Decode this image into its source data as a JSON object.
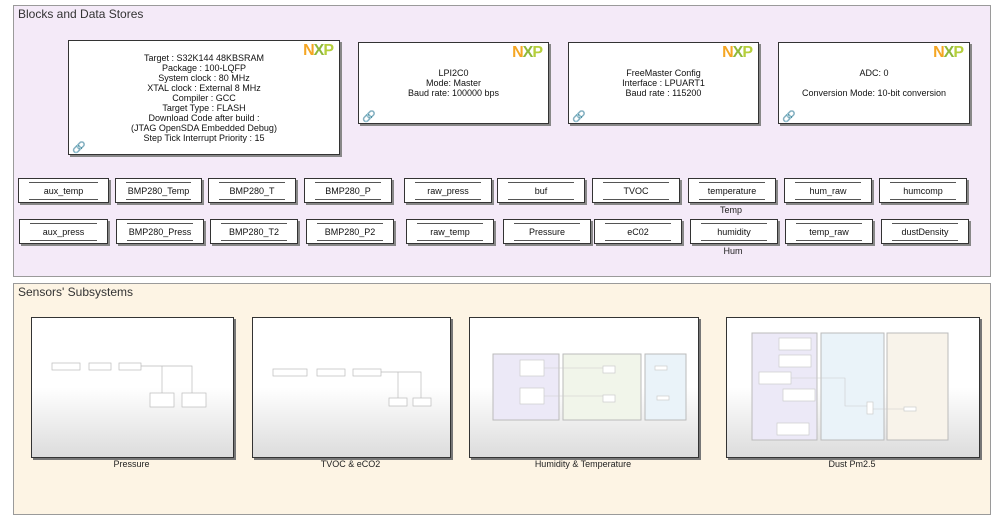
{
  "areas": {
    "blocks_title": "Blocks and Data Stores",
    "sensors_title": "Sensors' Subsystems"
  },
  "colors": {
    "blocks_bg": "#f4eaf8",
    "sensors_bg": "#fdf4e4"
  },
  "config_blocks": [
    {
      "logo": "NXP",
      "lines": [
        "Target : S32K144 48KBSRAM",
        "Package : 100-LQFP",
        "System clock : 80 MHz",
        "XTAL clock : External 8 MHz",
        "Compiler : GCC",
        "Target Type : FLASH",
        "Download Code after build :",
        "(JTAG OpenSDA Embedded Debug)",
        "Step Tick Interrupt Priority : 15"
      ]
    },
    {
      "logo": "NXP",
      "lines": [
        "LPI2C0",
        "Mode: Master",
        "Baud rate: 100000 bps"
      ]
    },
    {
      "logo": "NXP",
      "lines": [
        "FreeMaster Config",
        "Interface : LPUART1",
        "Baud rate : 115200"
      ]
    },
    {
      "logo": "NXP",
      "lines": [
        "ADC: 0",
        "",
        "Conversion Mode: 10-bit conversion"
      ]
    }
  ],
  "data_stores_row1": [
    "aux_temp",
    "BMP280_Temp",
    "BMP280_T",
    "BMP280_P",
    "raw_press",
    "buf",
    "TVOC",
    "temperature",
    "hum_raw",
    "humcomp"
  ],
  "data_stores_row2": [
    "aux_press",
    "BMP280_Press",
    "BMP280_T2",
    "BMP280_P2",
    "raw_temp",
    "Pressure",
    "eC02",
    "humidity",
    "temp_raw",
    "dustDensity"
  ],
  "data_store_labels": {
    "temperature": "Temp",
    "humidity": "Hum"
  },
  "subsystems": [
    "Pressure",
    "TVOC & eCO2",
    "Humidity & Temperature",
    "Dust Pm2.5"
  ]
}
